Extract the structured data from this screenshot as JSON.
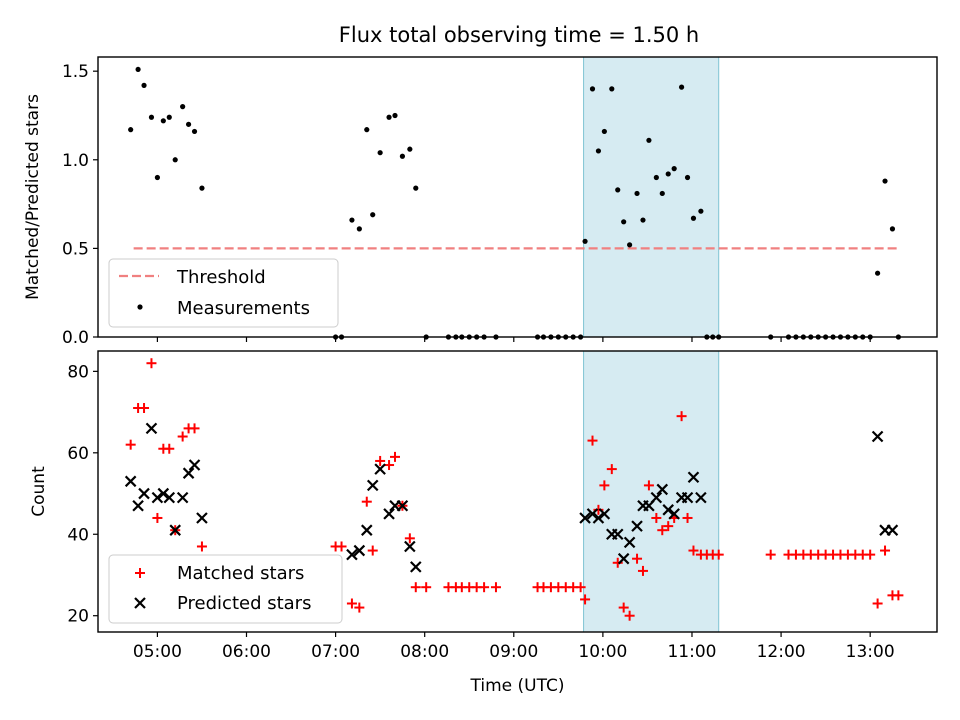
{
  "chart_data": [
    {
      "type": "scatter",
      "title": "Flux total observing time = 1.50 h",
      "xlabel": "",
      "ylabel": "Matched/Predicted stars",
      "ylim": [
        0,
        1.58
      ],
      "yticks": [
        "0.0",
        "0.5",
        "1.0",
        "1.5"
      ],
      "threshold": {
        "name": "Threshold",
        "value": 0.5,
        "x_range": [
          "04:44",
          "13:20"
        ],
        "color": "#f08080"
      },
      "highlight": {
        "start": "09:47",
        "end": "11:18",
        "color": "#add8e6"
      },
      "series": [
        {
          "name": "Measurements",
          "color": "#000000",
          "points": [
            [
              "04:42",
              1.17
            ],
            [
              "04:47",
              1.51
            ],
            [
              "04:51",
              1.42
            ],
            [
              "04:56",
              1.24
            ],
            [
              "05:00",
              0.9
            ],
            [
              "05:04",
              1.22
            ],
            [
              "05:08",
              1.24
            ],
            [
              "05:12",
              1.0
            ],
            [
              "05:17",
              1.3
            ],
            [
              "05:21",
              1.2
            ],
            [
              "05:25",
              1.16
            ],
            [
              "05:30",
              0.84
            ],
            [
              "07:00",
              0.0
            ],
            [
              "07:04",
              0.0
            ],
            [
              "07:11",
              0.66
            ],
            [
              "07:16",
              0.61
            ],
            [
              "07:21",
              1.17
            ],
            [
              "07:25",
              0.69
            ],
            [
              "07:30",
              1.04
            ],
            [
              "07:36",
              1.24
            ],
            [
              "07:40",
              1.25
            ],
            [
              "07:45",
              1.02
            ],
            [
              "07:50",
              1.06
            ],
            [
              "07:54",
              0.84
            ],
            [
              "08:01",
              0.0
            ],
            [
              "08:16",
              0.0
            ],
            [
              "08:21",
              0.0
            ],
            [
              "08:25",
              0.0
            ],
            [
              "08:30",
              0.0
            ],
            [
              "08:35",
              0.0
            ],
            [
              "08:40",
              0.0
            ],
            [
              "08:48",
              0.0
            ],
            [
              "09:16",
              0.0
            ],
            [
              "09:20",
              0.0
            ],
            [
              "09:25",
              0.0
            ],
            [
              "09:30",
              0.0
            ],
            [
              "09:35",
              0.0
            ],
            [
              "09:40",
              0.0
            ],
            [
              "09:45",
              0.0
            ],
            [
              "09:48",
              0.54
            ],
            [
              "09:53",
              1.4
            ],
            [
              "09:57",
              1.05
            ],
            [
              "10:01",
              1.16
            ],
            [
              "10:06",
              1.4
            ],
            [
              "10:10",
              0.83
            ],
            [
              "10:14",
              0.65
            ],
            [
              "10:18",
              0.52
            ],
            [
              "10:23",
              0.81
            ],
            [
              "10:27",
              0.66
            ],
            [
              "10:31",
              1.11
            ],
            [
              "10:36",
              0.9
            ],
            [
              "10:40",
              0.81
            ],
            [
              "10:44",
              0.92
            ],
            [
              "10:48",
              0.95
            ],
            [
              "10:53",
              1.41
            ],
            [
              "10:57",
              0.9
            ],
            [
              "11:01",
              0.67
            ],
            [
              "11:06",
              0.71
            ],
            [
              "11:10",
              0.0
            ],
            [
              "11:14",
              0.0
            ],
            [
              "11:18",
              0.0
            ],
            [
              "11:53",
              0.0
            ],
            [
              "12:05",
              0.0
            ],
            [
              "12:10",
              0.0
            ],
            [
              "12:15",
              0.0
            ],
            [
              "12:20",
              0.0
            ],
            [
              "12:25",
              0.0
            ],
            [
              "12:30",
              0.0
            ],
            [
              "12:35",
              0.0
            ],
            [
              "12:40",
              0.0
            ],
            [
              "12:45",
              0.0
            ],
            [
              "12:50",
              0.0
            ],
            [
              "12:55",
              0.0
            ],
            [
              "13:00",
              0.0
            ],
            [
              "13:05",
              0.36
            ],
            [
              "13:10",
              0.88
            ],
            [
              "13:15",
              0.61
            ],
            [
              "13:19",
              0.0
            ]
          ]
        }
      ]
    },
    {
      "type": "scatter",
      "title": "",
      "xlabel": "Time (UTC)",
      "ylabel": "Count",
      "ylim": [
        16,
        85
      ],
      "yticks": [
        "20",
        "40",
        "60",
        "80"
      ],
      "xticks": [
        "05:00",
        "06:00",
        "07:00",
        "08:00",
        "09:00",
        "10:00",
        "11:00",
        "12:00",
        "13:00"
      ],
      "highlight": {
        "start": "09:47",
        "end": "11:18",
        "color": "#add8e6"
      },
      "series": [
        {
          "name": "Matched stars",
          "marker": "plus",
          "color": "#ff0000",
          "points": [
            [
              "04:42",
              62
            ],
            [
              "04:47",
              71
            ],
            [
              "04:51",
              71
            ],
            [
              "04:56",
              82
            ],
            [
              "05:00",
              44
            ],
            [
              "05:04",
              61
            ],
            [
              "05:08",
              61
            ],
            [
              "05:12",
              41
            ],
            [
              "05:17",
              64
            ],
            [
              "05:21",
              66
            ],
            [
              "05:25",
              66
            ],
            [
              "05:30",
              37
            ],
            [
              "07:00",
              37
            ],
            [
              "07:04",
              37
            ],
            [
              "07:11",
              23
            ],
            [
              "07:16",
              22
            ],
            [
              "07:21",
              48
            ],
            [
              "07:25",
              36
            ],
            [
              "07:30",
              58
            ],
            [
              "07:36",
              57
            ],
            [
              "07:40",
              59
            ],
            [
              "07:45",
              47
            ],
            [
              "07:50",
              39
            ],
            [
              "07:54",
              27
            ],
            [
              "08:01",
              27
            ],
            [
              "08:16",
              27
            ],
            [
              "08:21",
              27
            ],
            [
              "08:25",
              27
            ],
            [
              "08:30",
              27
            ],
            [
              "08:35",
              27
            ],
            [
              "08:40",
              27
            ],
            [
              "08:48",
              27
            ],
            [
              "09:16",
              27
            ],
            [
              "09:20",
              27
            ],
            [
              "09:25",
              27
            ],
            [
              "09:30",
              27
            ],
            [
              "09:35",
              27
            ],
            [
              "09:40",
              27
            ],
            [
              "09:45",
              27
            ],
            [
              "09:48",
              24
            ],
            [
              "09:53",
              63
            ],
            [
              "09:57",
              46
            ],
            [
              "10:01",
              52
            ],
            [
              "10:06",
              56
            ],
            [
              "10:10",
              33
            ],
            [
              "10:14",
              22
            ],
            [
              "10:18",
              20
            ],
            [
              "10:23",
              34
            ],
            [
              "10:27",
              31
            ],
            [
              "10:31",
              52
            ],
            [
              "10:36",
              44
            ],
            [
              "10:40",
              41
            ],
            [
              "10:44",
              42
            ],
            [
              "10:48",
              44
            ],
            [
              "10:53",
              69
            ],
            [
              "10:57",
              44
            ],
            [
              "11:01",
              36
            ],
            [
              "11:06",
              35
            ],
            [
              "11:10",
              35
            ],
            [
              "11:14",
              35
            ],
            [
              "11:18",
              35
            ],
            [
              "11:53",
              35
            ],
            [
              "12:05",
              35
            ],
            [
              "12:10",
              35
            ],
            [
              "12:15",
              35
            ],
            [
              "12:20",
              35
            ],
            [
              "12:25",
              35
            ],
            [
              "12:30",
              35
            ],
            [
              "12:35",
              35
            ],
            [
              "12:40",
              35
            ],
            [
              "12:45",
              35
            ],
            [
              "12:50",
              35
            ],
            [
              "12:55",
              35
            ],
            [
              "13:00",
              35
            ],
            [
              "13:05",
              23
            ],
            [
              "13:10",
              36
            ],
            [
              "13:15",
              25
            ],
            [
              "13:19",
              25
            ]
          ]
        },
        {
          "name": "Predicted stars",
          "marker": "x",
          "color": "#000000",
          "points": [
            [
              "04:42",
              53
            ],
            [
              "04:47",
              47
            ],
            [
              "04:51",
              50
            ],
            [
              "04:56",
              66
            ],
            [
              "05:00",
              49
            ],
            [
              "05:04",
              50
            ],
            [
              "05:08",
              49
            ],
            [
              "05:12",
              41
            ],
            [
              "05:17",
              49
            ],
            [
              "05:21",
              55
            ],
            [
              "05:25",
              57
            ],
            [
              "05:30",
              44
            ],
            [
              "07:11",
              35
            ],
            [
              "07:16",
              36
            ],
            [
              "07:21",
              41
            ],
            [
              "07:25",
              52
            ],
            [
              "07:30",
              56
            ],
            [
              "07:36",
              45
            ],
            [
              "07:40",
              47
            ],
            [
              "07:45",
              47
            ],
            [
              "07:50",
              37
            ],
            [
              "07:54",
              32
            ],
            [
              "09:48",
              44
            ],
            [
              "09:53",
              45
            ],
            [
              "09:57",
              44
            ],
            [
              "10:01",
              45
            ],
            [
              "10:06",
              40
            ],
            [
              "10:10",
              40
            ],
            [
              "10:14",
              34
            ],
            [
              "10:18",
              38
            ],
            [
              "10:23",
              42
            ],
            [
              "10:27",
              47
            ],
            [
              "10:31",
              47
            ],
            [
              "10:36",
              49
            ],
            [
              "10:40",
              51
            ],
            [
              "10:44",
              46
            ],
            [
              "10:48",
              45
            ],
            [
              "10:53",
              49
            ],
            [
              "10:57",
              49
            ],
            [
              "11:01",
              54
            ],
            [
              "11:06",
              49
            ],
            [
              "13:05",
              64
            ],
            [
              "13:10",
              41
            ],
            [
              "13:15",
              41
            ]
          ]
        }
      ]
    }
  ]
}
